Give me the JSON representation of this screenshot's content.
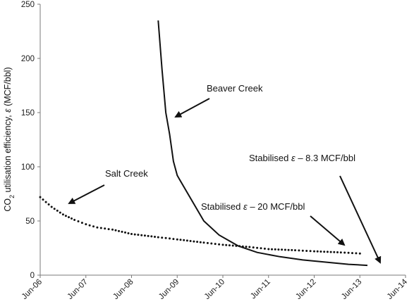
{
  "chart_data": {
    "type": "line",
    "title": "",
    "xlabel": "",
    "ylabel": {
      "text": "CO2 utilisation efficiency, ε (MCF/bbl)",
      "prefix": "CO",
      "subscript": "2",
      "suffix": " utilisation efficiency, ",
      "symbol": "ε",
      "unit": " (MCF/bbl)"
    },
    "x_ticks": [
      "Jun-06",
      "Jun-07",
      "Jun-08",
      "Jun-09",
      "Jun-10",
      "Jun-11",
      "Jun-12",
      "Jun-13",
      "Jun-14"
    ],
    "xlim": [
      "2006-06",
      "2014-06"
    ],
    "ylim": [
      0,
      250
    ],
    "y_ticks": [
      0,
      50,
      100,
      150,
      200,
      250
    ],
    "grid": false,
    "legend": "none",
    "series": [
      {
        "style": "solid",
        "color": "#111111",
        "x": [
          "2009-01",
          "2009-02",
          "2009-03",
          "2009-04",
          "2009-05",
          "2009-06",
          "2009-08",
          "2009-10",
          "2010-01",
          "2010-05",
          "2010-10",
          "2011-03",
          "2011-09",
          "2012-03",
          "2012-09",
          "2013-03",
          "2013-08"
        ],
        "y": [
          235,
          190,
          150,
          130,
          105,
          92,
          80,
          68,
          50,
          37,
          27,
          21,
          17,
          14,
          12,
          10,
          9
        ]
      },
      {
        "style": "dotted",
        "color": "#111111",
        "x": [
          "2006-06",
          "2006-09",
          "2006-12",
          "2007-03",
          "2007-06",
          "2007-09",
          "2008-01",
          "2008-06",
          "2009-01",
          "2009-06",
          "2010-01",
          "2010-06",
          "2011-01",
          "2011-06",
          "2012-01",
          "2012-06",
          "2013-01",
          "2013-06"
        ],
        "y": [
          72,
          63,
          56,
          51,
          47,
          44,
          42,
          38,
          35,
          33,
          30,
          28,
          26,
          24,
          23,
          22,
          21,
          20
        ]
      }
    ],
    "annotations": [
      {
        "id": "beaver-creek",
        "label": "Beaver Creek"
      },
      {
        "id": "salt-creek",
        "label": "Salt Creek"
      },
      {
        "id": "stabilised-8",
        "label_prefix": "Stabilised ",
        "symbol": "ε",
        "label_suffix": " – 8.3 MCF/bbl"
      },
      {
        "id": "stabilised-20",
        "label_prefix": "Stabilised ",
        "symbol": "ε",
        "label_suffix": " – 20 MCF/bbl"
      }
    ]
  }
}
